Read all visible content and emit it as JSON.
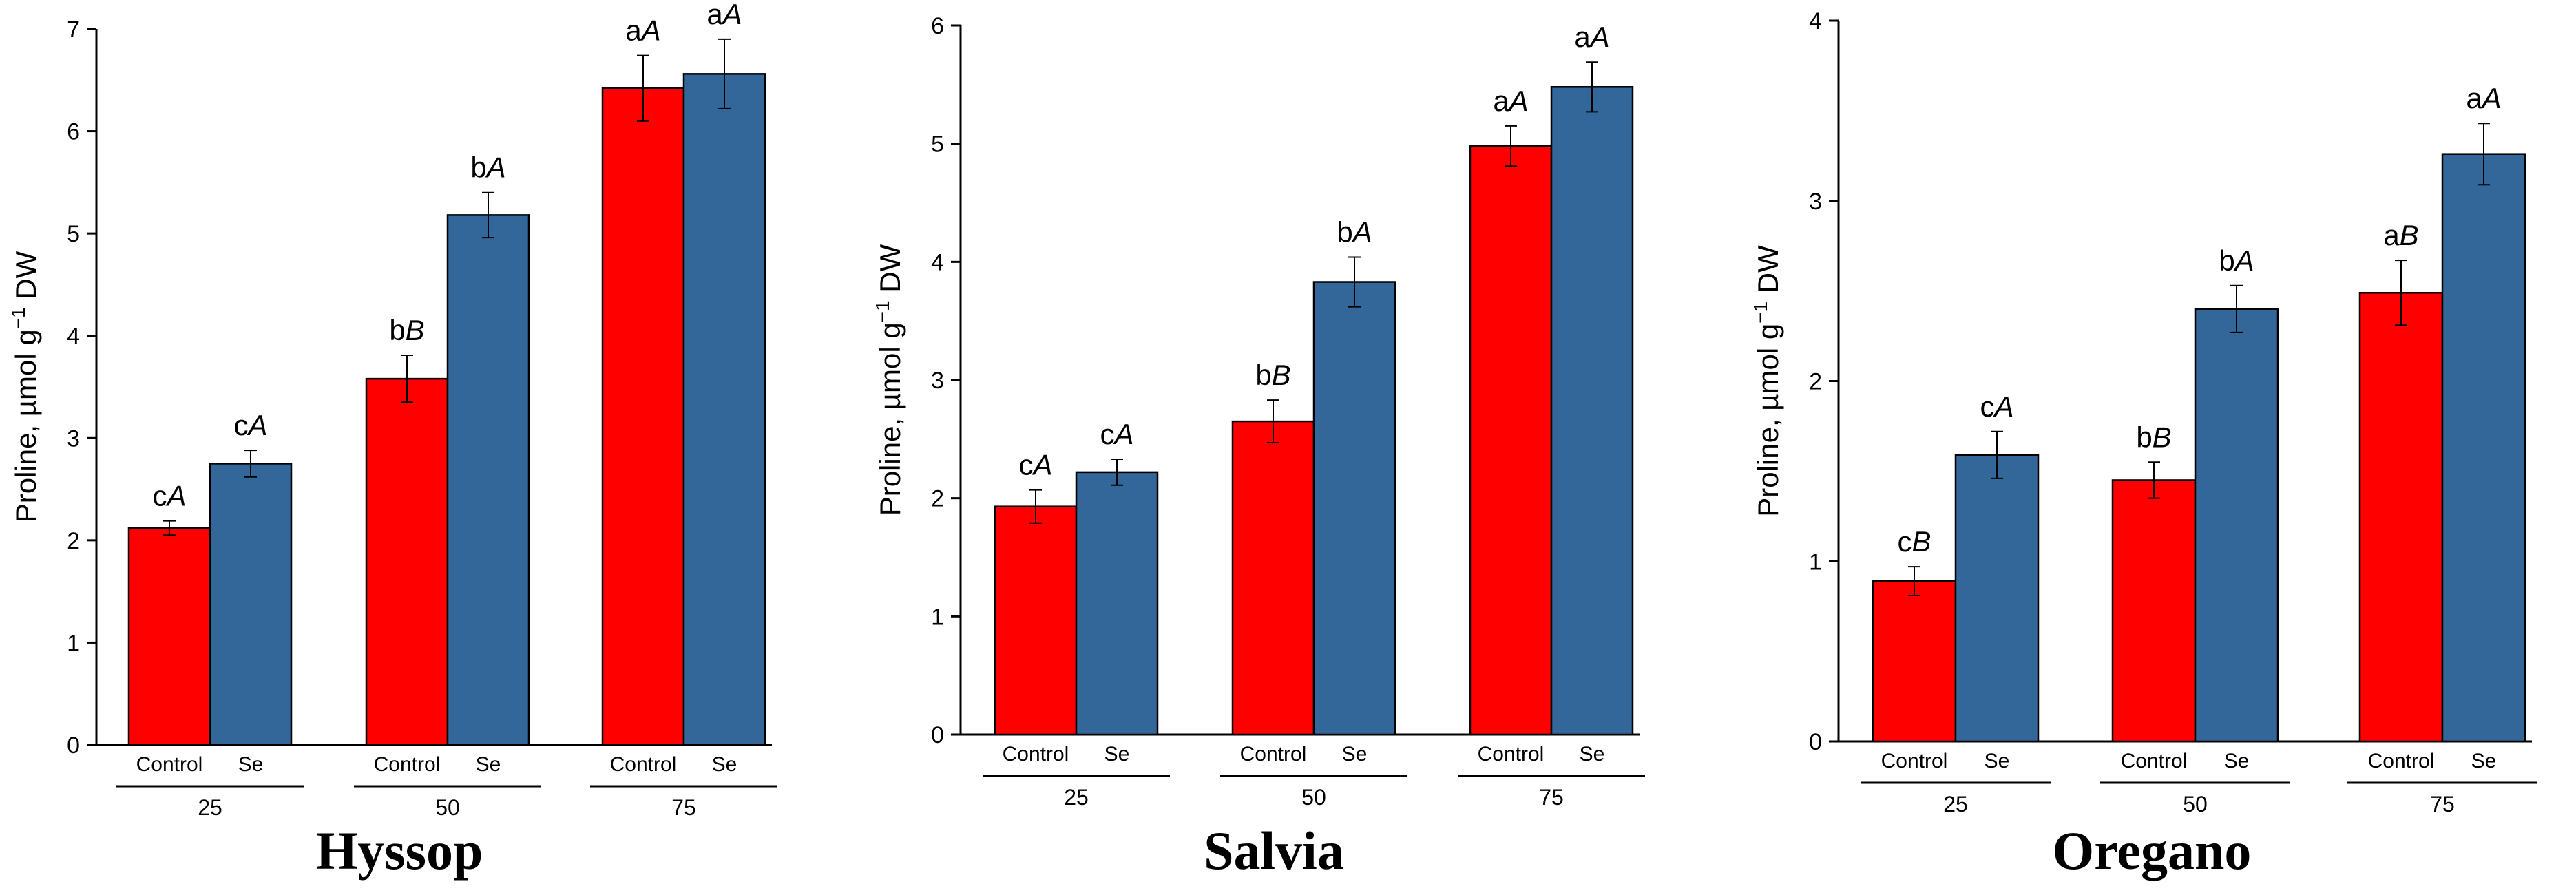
{
  "colors": {
    "control": "#ff0000",
    "se": "#336699",
    "ink": "#000000"
  },
  "chart_data": [
    {
      "type": "bar",
      "title": "Hyssop",
      "ylabel": "Proline, µmol g",
      "ylabel_sup": "−1",
      "ylabel_tail": " DW",
      "ylim": [
        0,
        7
      ],
      "yticks": [
        0,
        1,
        2,
        3,
        4,
        5,
        6,
        7
      ],
      "groups": [
        "25",
        "50",
        "75"
      ],
      "series": [
        {
          "name": "Control",
          "values": [
            2.12,
            3.58,
            6.42
          ],
          "errors": [
            0.07,
            0.23,
            0.32
          ],
          "letters": [
            "c",
            "b",
            "a"
          ],
          "caps": [
            "A",
            "B",
            "A"
          ]
        },
        {
          "name": "Se",
          "values": [
            2.75,
            5.18,
            6.56
          ],
          "errors": [
            0.13,
            0.22,
            0.34
          ],
          "letters": [
            "c",
            "b",
            "a"
          ],
          "caps": [
            "A",
            "A",
            "A"
          ]
        }
      ]
    },
    {
      "type": "bar",
      "title": "Salvia",
      "ylabel": "Proline, µmol g",
      "ylabel_sup": "−1",
      "ylabel_tail": " DW",
      "ylim": [
        0,
        6
      ],
      "yticks": [
        0,
        1,
        2,
        3,
        4,
        5,
        6
      ],
      "groups": [
        "25",
        "50",
        "75"
      ],
      "series": [
        {
          "name": "Control",
          "values": [
            1.93,
            2.65,
            4.98
          ],
          "errors": [
            0.14,
            0.18,
            0.17
          ],
          "letters": [
            "c",
            "b",
            "a"
          ],
          "caps": [
            "A",
            "B",
            "A"
          ]
        },
        {
          "name": "Se",
          "values": [
            2.22,
            3.83,
            5.48
          ],
          "errors": [
            0.11,
            0.21,
            0.21
          ],
          "letters": [
            "c",
            "b",
            "a"
          ],
          "caps": [
            "A",
            "A",
            "A"
          ]
        }
      ]
    },
    {
      "type": "bar",
      "title": "Oregano",
      "ylabel": "Proline, µmol g",
      "ylabel_sup": "−1",
      "ylabel_tail": " DW",
      "ylim": [
        0,
        4
      ],
      "yticks": [
        0,
        1,
        2,
        3,
        4
      ],
      "groups": [
        "25",
        "50",
        "75"
      ],
      "series": [
        {
          "name": "Control",
          "values": [
            0.89,
            1.45,
            2.49
          ],
          "errors": [
            0.08,
            0.1,
            0.18
          ],
          "letters": [
            "c",
            "b",
            "a"
          ],
          "caps": [
            "B",
            "B",
            "B"
          ]
        },
        {
          "name": "Se",
          "values": [
            1.59,
            2.4,
            3.26
          ],
          "errors": [
            0.13,
            0.13,
            0.17
          ],
          "letters": [
            "c",
            "b",
            "a"
          ],
          "caps": [
            "A",
            "A",
            "A"
          ]
        }
      ]
    }
  ]
}
